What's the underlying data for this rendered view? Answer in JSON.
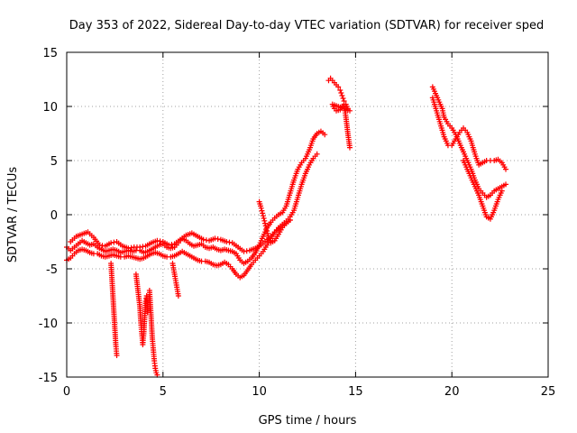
{
  "chart_data": {
    "type": "scatter",
    "title": "Day 353 of 2022, Sidereal Day-to-day VTEC variation (SDTVAR) for receiver sped",
    "xlabel": "GPS time / hours",
    "ylabel": "SDTVAR / TECUs",
    "xlim": [
      0,
      25
    ],
    "ylim": [
      -15,
      15
    ],
    "xticks": [
      0,
      5,
      10,
      15,
      20,
      25
    ],
    "yticks": [
      -15,
      -10,
      -5,
      0,
      5,
      10,
      15
    ],
    "xtick_labels": [
      "0",
      "5",
      "10",
      "15",
      "20",
      "25"
    ],
    "ytick_labels": [
      "-15",
      "-10",
      "-5",
      "0",
      "5",
      "10",
      "15"
    ],
    "grid": true,
    "marker": "+",
    "color": "#ff0000",
    "series": [
      {
        "name": "trace-main-a",
        "x": [
          0.0,
          0.2,
          0.4,
          0.6,
          0.8,
          1.0,
          1.2,
          1.4,
          1.6,
          1.8,
          2.0,
          2.2,
          2.4,
          2.6,
          2.8,
          3.0,
          3.2,
          3.4,
          3.6,
          3.8,
          4.0,
          4.2,
          4.4,
          4.6,
          4.8,
          5.0,
          5.2,
          5.4,
          5.6,
          5.8,
          6.0,
          6.2,
          6.4,
          6.6,
          6.8,
          7.0,
          7.2,
          7.4,
          7.6,
          7.8,
          8.0,
          8.2,
          8.4,
          8.6,
          8.8,
          9.0,
          9.2,
          9.4,
          9.6,
          9.8,
          10.0,
          10.2,
          10.4,
          10.6,
          10.8,
          11.0,
          11.2,
          11.4,
          11.6,
          11.8,
          12.0,
          12.2,
          12.4,
          12.6,
          12.8,
          13.0,
          13.2,
          13.4
        ],
        "y": [
          -3.0,
          -3.3,
          -3.0,
          -2.7,
          -2.4,
          -2.6,
          -2.8,
          -2.7,
          -3.0,
          -3.2,
          -3.4,
          -3.3,
          -3.2,
          -3.3,
          -3.5,
          -3.4,
          -3.3,
          -3.4,
          -3.3,
          -3.3,
          -3.5,
          -3.4,
          -3.2,
          -3.0,
          -2.8,
          -2.7,
          -3.0,
          -3.1,
          -3.0,
          -2.6,
          -2.2,
          -2.4,
          -2.7,
          -2.9,
          -2.8,
          -2.7,
          -3.0,
          -3.1,
          -3.0,
          -3.2,
          -3.3,
          -3.2,
          -3.3,
          -3.4,
          -3.6,
          -4.2,
          -4.5,
          -4.3,
          -4.0,
          -3.5,
          -2.8,
          -2.0,
          -1.2,
          -0.7,
          -0.3,
          0.0,
          0.2,
          0.8,
          2.0,
          3.2,
          4.2,
          4.8,
          5.2,
          6.0,
          7.0,
          7.5,
          7.7,
          7.4
        ]
      },
      {
        "name": "trace-main-b",
        "x": [
          0.0,
          0.2,
          0.4,
          0.6,
          0.8,
          1.0,
          1.2,
          1.4,
          1.6,
          1.8,
          2.0,
          2.2,
          2.4,
          2.6,
          2.8,
          3.0,
          3.2,
          3.4,
          3.6,
          3.8,
          4.0,
          4.2,
          4.4,
          4.6,
          4.8,
          5.0,
          5.2,
          5.4,
          5.6,
          5.8,
          6.0,
          6.2,
          6.4,
          6.6,
          6.8,
          7.0,
          7.2,
          7.4,
          7.6,
          7.8,
          8.0,
          8.2,
          8.4,
          8.6,
          8.8,
          9.0,
          9.2,
          9.4,
          9.6,
          9.8,
          10.0,
          10.2,
          10.4,
          10.6,
          10.8,
          11.0,
          11.2,
          11.4,
          11.6,
          11.8,
          12.0,
          12.2,
          12.4,
          12.6,
          12.8,
          13.0
        ],
        "y": [
          -4.2,
          -4.0,
          -3.6,
          -3.3,
          -3.2,
          -3.3,
          -3.5,
          -3.6,
          -3.6,
          -3.8,
          -3.9,
          -3.8,
          -3.7,
          -3.8,
          -3.9,
          -3.9,
          -3.8,
          -3.9,
          -4.0,
          -4.1,
          -4.0,
          -3.8,
          -3.6,
          -3.5,
          -3.6,
          -3.8,
          -3.9,
          -3.9,
          -3.8,
          -3.6,
          -3.4,
          -3.6,
          -3.8,
          -4.0,
          -4.2,
          -4.3,
          -4.3,
          -4.4,
          -4.6,
          -4.7,
          -4.6,
          -4.4,
          -4.6,
          -5.0,
          -5.5,
          -5.8,
          -5.6,
          -5.1,
          -4.6,
          -4.2,
          -3.8,
          -3.4,
          -2.8,
          -2.2,
          -1.6,
          -1.2,
          -0.9,
          -0.6,
          -0.2,
          0.4,
          1.6,
          2.8,
          3.8,
          4.6,
          5.2,
          5.6
        ]
      },
      {
        "name": "trace-main-c",
        "x": [
          0.2,
          0.5,
          0.8,
          1.1,
          1.4,
          1.7,
          2.0,
          2.3,
          2.6,
          2.9,
          3.2,
          3.5,
          3.8,
          4.1,
          4.4,
          4.7,
          5.0,
          5.3,
          5.6,
          5.9,
          6.2,
          6.5,
          6.8,
          7.1,
          7.4,
          7.7,
          8.0,
          8.3,
          8.6,
          8.9,
          9.2,
          9.5,
          9.8,
          10.1,
          10.4,
          10.7,
          11.0,
          11.3,
          11.6
        ],
        "y": [
          -2.5,
          -2.0,
          -1.8,
          -1.6,
          -2.1,
          -2.8,
          -2.9,
          -2.6,
          -2.5,
          -2.9,
          -3.1,
          -3.0,
          -3.0,
          -2.9,
          -2.6,
          -2.4,
          -2.5,
          -2.8,
          -2.7,
          -2.3,
          -1.9,
          -1.7,
          -2.0,
          -2.3,
          -2.4,
          -2.2,
          -2.3,
          -2.5,
          -2.6,
          -3.0,
          -3.4,
          -3.3,
          -3.1,
          -2.8,
          -2.3,
          -1.8,
          -1.3,
          -0.9,
          -0.5
        ]
      },
      {
        "name": "spike-2-5h",
        "x": [
          2.3,
          2.35,
          2.4,
          2.45,
          2.5,
          2.55,
          2.6
        ],
        "y": [
          -4.5,
          -6.0,
          -7.5,
          -9.0,
          -10.5,
          -12.0,
          -13.0
        ]
      },
      {
        "name": "spike-3-9h",
        "x": [
          3.6,
          3.7,
          3.8,
          3.85,
          3.9,
          3.95,
          4.0,
          4.05,
          4.1,
          4.15,
          4.2
        ],
        "y": [
          -5.5,
          -7.0,
          -8.5,
          -10.0,
          -11.0,
          -12.0,
          -11.0,
          -9.5,
          -8.0,
          -7.5,
          -9.0
        ]
      },
      {
        "name": "spike-4-6h",
        "x": [
          4.3,
          4.35,
          4.4,
          4.45,
          4.5,
          4.55,
          4.6,
          4.65,
          4.7
        ],
        "y": [
          -7.0,
          -8.5,
          -10.0,
          -11.5,
          -12.5,
          -13.5,
          -14.2,
          -14.6,
          -14.8
        ]
      },
      {
        "name": "spike-5-8h",
        "x": [
          5.5,
          5.6,
          5.7,
          5.8
        ],
        "y": [
          -4.5,
          -5.5,
          -6.5,
          -7.5
        ]
      },
      {
        "name": "segment-10h",
        "x": [
          10.0,
          10.1,
          10.2,
          10.3,
          10.4,
          10.5,
          10.6,
          10.8,
          11.0,
          11.2,
          11.4,
          11.6
        ],
        "y": [
          1.2,
          0.6,
          -0.1,
          -0.8,
          -1.5,
          -2.2,
          -2.6,
          -2.4,
          -1.8,
          -1.2,
          -0.8,
          -0.5
        ]
      },
      {
        "name": "segment-14h",
        "x": [
          13.6,
          13.7,
          13.8,
          13.9,
          14.0,
          14.1,
          14.2,
          14.3,
          14.4,
          14.5,
          14.6,
          14.7,
          13.8,
          13.9,
          14.0,
          14.2,
          14.4,
          14.5,
          14.6,
          14.7
        ],
        "y": [
          12.4,
          12.6,
          12.4,
          12.2,
          12.0,
          11.8,
          11.5,
          11.0,
          10.5,
          10.2,
          9.8,
          9.6,
          10.2,
          9.8,
          9.6,
          9.7,
          10.2,
          9.0,
          7.5,
          6.2
        ]
      },
      {
        "name": "segment-19-23h-a",
        "x": [
          19.0,
          19.1,
          19.2,
          19.3,
          19.4,
          19.5,
          19.6,
          19.8,
          20.0,
          20.2,
          20.4,
          20.6,
          20.8,
          21.0,
          21.2,
          21.4,
          21.6,
          21.8,
          22.0,
          22.2,
          22.4,
          22.6,
          22.8
        ],
        "y": [
          11.8,
          11.4,
          11.0,
          10.6,
          10.2,
          9.8,
          9.0,
          8.4,
          8.0,
          7.4,
          6.6,
          5.8,
          5.0,
          4.2,
          3.2,
          2.4,
          2.0,
          1.6,
          1.8,
          2.2,
          2.4,
          2.6,
          2.8
        ]
      },
      {
        "name": "segment-19-23h-b",
        "x": [
          19.0,
          19.2,
          19.4,
          19.6,
          19.8,
          20.0,
          20.2,
          20.4,
          20.6,
          20.8,
          21.0,
          21.2,
          21.4,
          21.6,
          21.8,
          22.0,
          22.2,
          22.4,
          22.6,
          22.8
        ],
        "y": [
          10.8,
          9.6,
          8.4,
          7.2,
          6.4,
          6.4,
          7.0,
          7.6,
          8.0,
          7.6,
          6.8,
          5.6,
          4.6,
          4.8,
          5.0,
          5.0,
          5.0,
          5.1,
          4.8,
          4.2
        ]
      },
      {
        "name": "segment-19-23h-c",
        "x": [
          20.6,
          20.8,
          21.0,
          21.2,
          21.4,
          21.6,
          21.8,
          22.0,
          22.2,
          22.4,
          22.6
        ],
        "y": [
          5.0,
          4.2,
          3.4,
          2.6,
          1.8,
          0.8,
          -0.2,
          -0.4,
          0.4,
          1.4,
          2.2
        ]
      }
    ]
  }
}
